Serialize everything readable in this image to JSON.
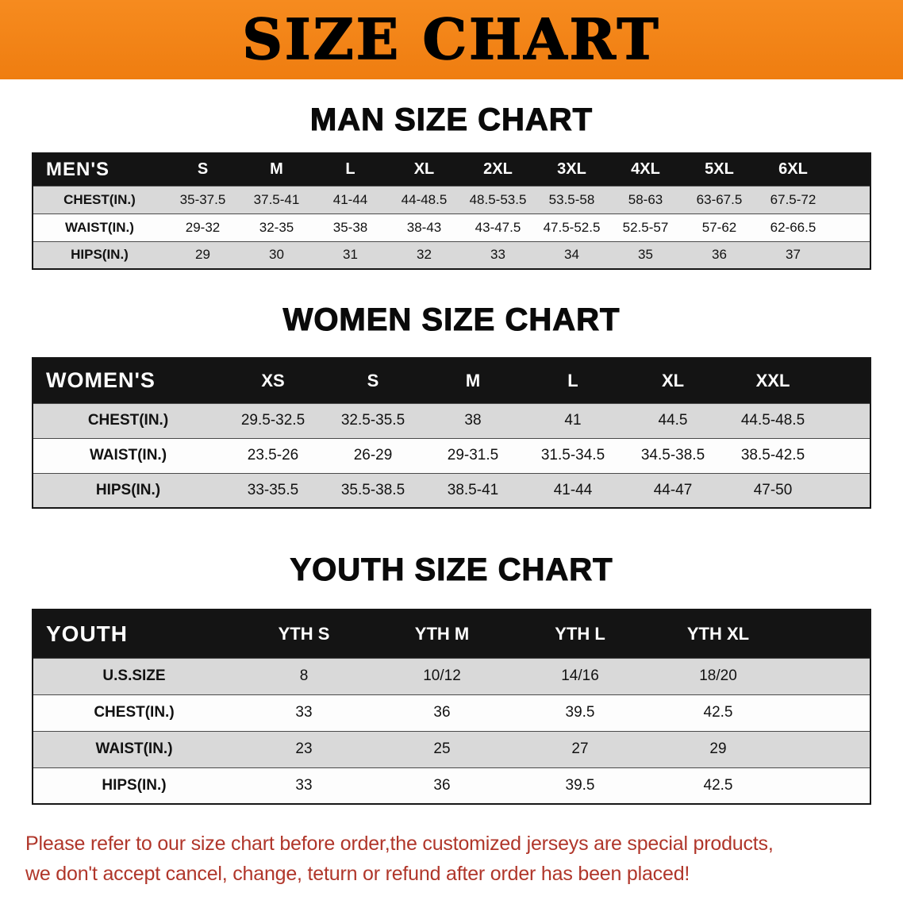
{
  "colors": {
    "banner_bg": "#f68b1f",
    "banner_bg_deep": "#ef7d10",
    "header_row_bg": "#141414",
    "header_row_text": "#ffffff",
    "stripe_gray": "#d9d9d9",
    "stripe_white": "#fdfdfd",
    "disclaimer_red": "#b0362a",
    "text_black": "#121212"
  },
  "banner": {
    "title": "SIZE CHART"
  },
  "sections": [
    {
      "id": "men",
      "heading": "MAN SIZE CHART",
      "table": {
        "header": [
          "MEN'S",
          "S",
          "M",
          "L",
          "XL",
          "2XL",
          "3XL",
          "4XL",
          "5XL",
          "6XL"
        ],
        "rows": [
          [
            "CHEST(IN.)",
            "35-37.5",
            "37.5-41",
            "41-44",
            "44-48.5",
            "48.5-53.5",
            "53.5-58",
            "58-63",
            "63-67.5",
            "67.5-72"
          ],
          [
            "WAIST(IN.)",
            "29-32",
            "32-35",
            "35-38",
            "38-43",
            "43-47.5",
            "47.5-52.5",
            "52.5-57",
            "57-62",
            "62-66.5"
          ],
          [
            "HIPS(IN.)",
            "29",
            "30",
            "31",
            "32",
            "33",
            "34",
            "35",
            "36",
            "37"
          ]
        ]
      }
    },
    {
      "id": "women",
      "heading": "WOMEN SIZE CHART",
      "table": {
        "header": [
          "WOMEN'S",
          "XS",
          "S",
          "M",
          "L",
          "XL",
          "XXL"
        ],
        "rows": [
          [
            "CHEST(IN.)",
            "29.5-32.5",
            "32.5-35.5",
            "38",
            "41",
            "44.5",
            "44.5-48.5"
          ],
          [
            "WAIST(IN.)",
            "23.5-26",
            "26-29",
            "29-31.5",
            "31.5-34.5",
            "34.5-38.5",
            "38.5-42.5"
          ],
          [
            "HIPS(IN.)",
            "33-35.5",
            "35.5-38.5",
            "38.5-41",
            "41-44",
            "44-47",
            "47-50"
          ]
        ]
      }
    },
    {
      "id": "youth",
      "heading": "YOUTH SIZE CHART",
      "table": {
        "header": [
          "YOUTH",
          "YTH S",
          "YTH M",
          "YTH L",
          "YTH XL"
        ],
        "rows": [
          [
            "U.S.SIZE",
            "8",
            "10/12",
            "14/16",
            "18/20"
          ],
          [
            "CHEST(IN.)",
            "33",
            "36",
            "39.5",
            "42.5"
          ],
          [
            "WAIST(IN.)",
            "23",
            "25",
            "27",
            "29"
          ],
          [
            "HIPS(IN.)",
            "33",
            "36",
            "39.5",
            "42.5"
          ]
        ]
      }
    }
  ],
  "disclaimer": {
    "line1": "Please refer to our size chart before order,the customized jerseys are special products,",
    "line2": "we don't accept cancel, change, teturn or refund after order has been placed!"
  }
}
